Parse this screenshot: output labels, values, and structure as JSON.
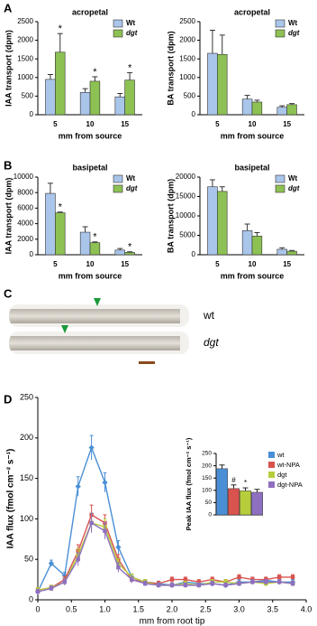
{
  "panel_labels": [
    "A",
    "B",
    "C",
    "D"
  ],
  "micrograph_labels": [
    "wt",
    "dgt"
  ],
  "chart_data": [
    {
      "type": "bar",
      "title": "acropetal",
      "ylabel": "IAA transport (dpm)",
      "xlabel": "mm from source",
      "categories": [
        "5",
        "10",
        "15"
      ],
      "ylim": [
        0,
        2500
      ],
      "yticks": [
        0,
        500,
        1000,
        1500,
        2000,
        2500
      ],
      "legend": "top-right",
      "series": [
        {
          "name": "Wt",
          "color": "#a9c5ea",
          "font_style": "normal",
          "values": [
            950,
            600,
            480
          ],
          "errors": [
            130,
            100,
            90
          ]
        },
        {
          "name": "dgt",
          "color": "#8dc153",
          "font_style": "italic",
          "values": [
            1680,
            900,
            930
          ],
          "errors": [
            500,
            120,
            200
          ],
          "significance": [
            "*",
            "*",
            "*"
          ]
        }
      ]
    },
    {
      "type": "bar",
      "title": "acropetal",
      "ylabel": "BA transport (dpm)",
      "xlabel": "mm from source",
      "categories": [
        "5",
        "10",
        "15"
      ],
      "ylim": [
        0,
        2500
      ],
      "yticks": [
        0,
        500,
        1000,
        1500,
        2000,
        2500
      ],
      "legend": "top-right",
      "series": [
        {
          "name": "Wt",
          "color": "#a9c5ea",
          "font_style": "normal",
          "values": [
            1650,
            420,
            200
          ],
          "errors": [
            620,
            100,
            40
          ]
        },
        {
          "name": "dgt",
          "color": "#8dc153",
          "font_style": "italic",
          "values": [
            1620,
            340,
            270
          ],
          "errors": [
            520,
            50,
            30
          ]
        }
      ]
    },
    {
      "type": "bar",
      "title": "basipetal",
      "ylabel": "IAA transport (dpm)",
      "xlabel": "mm from source",
      "categories": [
        "5",
        "10",
        "15"
      ],
      "ylim": [
        0,
        10000
      ],
      "yticks": [
        0,
        2000,
        4000,
        6000,
        8000,
        10000
      ],
      "legend": "top-right",
      "series": [
        {
          "name": "Wt",
          "color": "#a9c5ea",
          "font_style": "normal",
          "values": [
            7900,
            2900,
            600
          ],
          "errors": [
            1300,
            700,
            200
          ]
        },
        {
          "name": "dgt",
          "color": "#8dc153",
          "font_style": "italic",
          "values": [
            5400,
            1550,
            300
          ],
          "errors": [
            100,
            100,
            80
          ],
          "significance": [
            "*",
            "*",
            "*"
          ]
        }
      ]
    },
    {
      "type": "bar",
      "title": "basipetal",
      "ylabel": "BA transport (dpm)",
      "xlabel": "mm from source",
      "categories": [
        "5",
        "10",
        "15"
      ],
      "ylim": [
        0,
        20000
      ],
      "yticks": [
        0,
        5000,
        10000,
        15000,
        20000
      ],
      "legend": "top-right",
      "series": [
        {
          "name": "Wt",
          "color": "#a9c5ea",
          "font_style": "normal",
          "values": [
            17500,
            6200,
            1400
          ],
          "errors": [
            1800,
            1700,
            400
          ]
        },
        {
          "name": "dgt",
          "color": "#8dc153",
          "font_style": "italic",
          "values": [
            16300,
            4800,
            900
          ],
          "errors": [
            1200,
            900,
            200
          ]
        }
      ]
    },
    {
      "type": "line",
      "ylabel": "IAA flux (fmol cm⁻² s⁻¹)",
      "xlabel": "mm from root tip",
      "xlim": [
        0,
        4
      ],
      "xticks": [
        0,
        0.5,
        {
          "value": 1,
          "label": "1.0"
        },
        1.5,
        {
          "value": 2,
          "label": "2.0"
        },
        2.5,
        {
          "value": 3,
          "label": "3.0"
        },
        3.5,
        {
          "value": 4,
          "label": "4.0"
        }
      ],
      "ylim": [
        0,
        250
      ],
      "yticks": [
        0,
        50,
        100,
        150,
        200,
        250
      ],
      "x": [
        0,
        0.2,
        0.4,
        0.6,
        0.8,
        1.0,
        1.2,
        1.4,
        1.6,
        1.8,
        2.0,
        2.2,
        2.4,
        2.6,
        2.8,
        3.0,
        3.2,
        3.4,
        3.6,
        3.8
      ],
      "series": [
        {
          "name": "wt",
          "color": "#4a8fd6",
          "values": [
            10,
            45,
            30,
            140,
            188,
            145,
            65,
            28,
            22,
            20,
            18,
            22,
            20,
            20,
            18,
            22,
            22,
            24,
            22,
            22
          ],
          "errors": [
            3,
            4,
            4,
            12,
            15,
            12,
            8,
            4,
            3,
            3,
            3,
            3,
            3,
            3,
            3,
            3,
            3,
            3,
            3,
            3
          ]
        },
        {
          "name": "wt-NPA",
          "color": "#d9534f",
          "values": [
            12,
            15,
            25,
            60,
            105,
            95,
            50,
            25,
            22,
            20,
            25,
            25,
            22,
            25,
            22,
            28,
            25,
            25,
            28,
            28
          ],
          "errors": [
            3,
            3,
            4,
            8,
            12,
            10,
            6,
            4,
            3,
            3,
            3,
            3,
            3,
            3,
            3,
            3,
            3,
            3,
            3,
            3
          ]
        },
        {
          "name": "dgt",
          "color": "#b7cd3c",
          "values": [
            12,
            15,
            22,
            55,
            95,
            90,
            45,
            28,
            22,
            18,
            18,
            20,
            18,
            22,
            22,
            20,
            22,
            20,
            22,
            20
          ],
          "errors": [
            3,
            3,
            4,
            8,
            12,
            10,
            6,
            4,
            3,
            3,
            3,
            3,
            3,
            3,
            3,
            3,
            3,
            3,
            3,
            3
          ]
        },
        {
          "name": "dgt-NPA",
          "color": "#8e6fc0",
          "values": [
            10,
            14,
            22,
            50,
            95,
            85,
            40,
            25,
            20,
            18,
            18,
            18,
            18,
            20,
            18,
            20,
            22,
            22,
            22,
            20
          ],
          "errors": [
            3,
            3,
            4,
            8,
            12,
            10,
            6,
            4,
            3,
            3,
            3,
            3,
            3,
            3,
            3,
            3,
            3,
            3,
            3,
            3
          ]
        }
      ]
    },
    {
      "type": "bar",
      "ylabel": "Peak IAA flux (fmol cm⁻² s⁻¹)",
      "legend": "right",
      "categories": [
        "wt",
        "wt-NPA",
        "dgt",
        "dgt-NPA"
      ],
      "colors": [
        "#4a8fd6",
        "#d9534f",
        "#b7cd3c",
        "#8e6fc0"
      ],
      "values": [
        188,
        107,
        98,
        92
      ],
      "errors": [
        15,
        15,
        12,
        12
      ],
      "significance": [
        null,
        "#",
        "*",
        null
      ],
      "ylim": [
        0,
        250
      ],
      "yticks": [
        0,
        50,
        100,
        150,
        200,
        250
      ]
    }
  ]
}
